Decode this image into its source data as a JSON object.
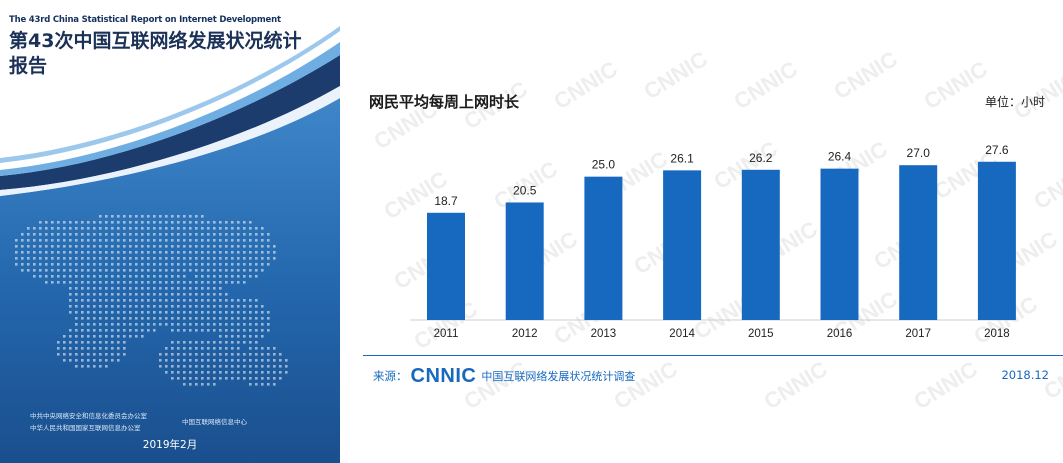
{
  "cover": {
    "title_en": "The 43rd China Statistical Report on Internet Development",
    "title_zh": "第43次中国互联网络发展状况统计报告",
    "org_line1": "中共中央网络安全和信息化委员会办公室",
    "org_line2": "中华人民共和国国家互联网信息办公室",
    "org_line3": "中国互联网络信息中心",
    "date": "2019年2月",
    "colors": {
      "navy": "#1d3c6e",
      "blue": "#1f63a8",
      "light": "#5aa0db"
    }
  },
  "chart_data": {
    "type": "bar",
    "title": "网民平均每周上网时长",
    "unit_label": "单位：小时",
    "categories": [
      "2011",
      "2012",
      "2013",
      "2014",
      "2015",
      "2016",
      "2017",
      "2018"
    ],
    "values": [
      18.7,
      20.5,
      25.0,
      26.1,
      26.2,
      26.4,
      27.0,
      27.6
    ],
    "value_labels": [
      "18.7",
      "20.5",
      "25.0",
      "26.1",
      "26.2",
      "26.4",
      "27.0",
      "27.6"
    ],
    "ylim": [
      0,
      30
    ],
    "bar_color": "#1769c0",
    "xlabel": "",
    "ylabel": ""
  },
  "footer": {
    "source_prefix": "来源：",
    "logo": "CNNIC",
    "survey": "中国互联网络发展状况统计调查",
    "date": "2018.12"
  },
  "watermark": {
    "text": "CNNIC",
    "color": "#eeeeee"
  }
}
